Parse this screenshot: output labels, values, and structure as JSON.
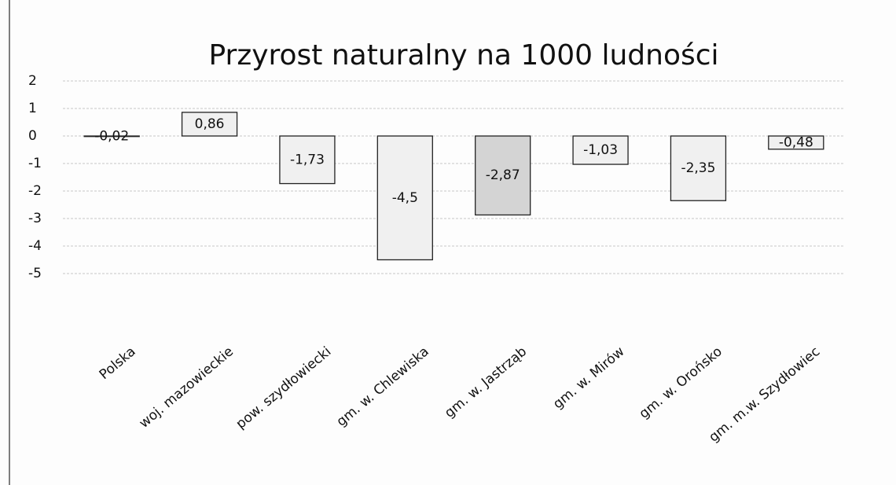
{
  "chart_data": {
    "type": "bar",
    "title": "Przyrost naturalny na 1000 ludności",
    "categories": [
      "Polska",
      "woj. mazowieckie",
      "pow. szydłowiecki",
      "gm. w. Chlewiska",
      "gm. w. Jastrząb",
      "gm. w. Mirów",
      "gm. w. Orońsko",
      "gm. m.w. Szydłowiec"
    ],
    "values": [
      -0.02,
      0.86,
      -1.73,
      -4.5,
      -2.87,
      -1.03,
      -2.35,
      -0.48
    ],
    "value_labels": [
      "-0,02",
      "0,86",
      "-1,73",
      "-4,5",
      "-2,87",
      "-1,03",
      "-2,35",
      "-0,48"
    ],
    "colors": [
      "#f0f0f0",
      "#f0f0f0",
      "#f0f0f0",
      "#f0f0f0",
      "#d4d4d4",
      "#f0f0f0",
      "#f0f0f0",
      "#f0f0f0"
    ],
    "ylim": [
      -5,
      2
    ],
    "yticks": [
      -5,
      -4,
      -3,
      -2,
      -1,
      0,
      1,
      2
    ],
    "grid": true
  }
}
